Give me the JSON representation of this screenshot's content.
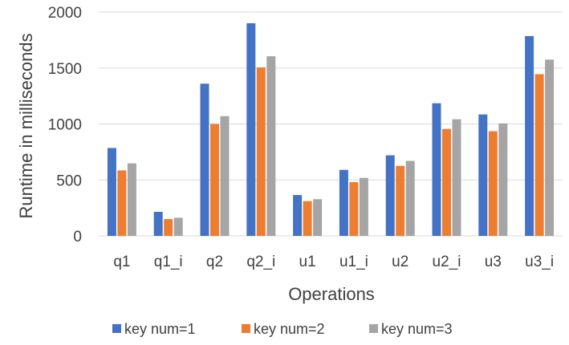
{
  "chart_data": {
    "type": "bar",
    "title": "",
    "xlabel": "Operations",
    "ylabel": "Runtime in milliseconds",
    "ylim": [
      0,
      2000
    ],
    "yticks": [
      0,
      500,
      1000,
      1500,
      2000
    ],
    "grid": true,
    "legend_position": "bottom",
    "categories": [
      "q1",
      "q1_i",
      "q2",
      "q2_i",
      "u1",
      "u1_i",
      "u2",
      "u2_i",
      "u3",
      "u3_i"
    ],
    "series": [
      {
        "name": "key num=1",
        "color": "#4472C4",
        "values": [
          785,
          215,
          1360,
          1900,
          365,
          590,
          720,
          1185,
          1085,
          1785
        ]
      },
      {
        "name": "key num=2",
        "color": "#ED7D31",
        "values": [
          585,
          150,
          1000,
          1505,
          310,
          480,
          625,
          955,
          935,
          1445
        ]
      },
      {
        "name": "key num=3",
        "color": "#A5A5A5",
        "values": [
          648,
          162,
          1070,
          1605,
          328,
          518,
          670,
          1042,
          1005,
          1575
        ]
      }
    ]
  }
}
